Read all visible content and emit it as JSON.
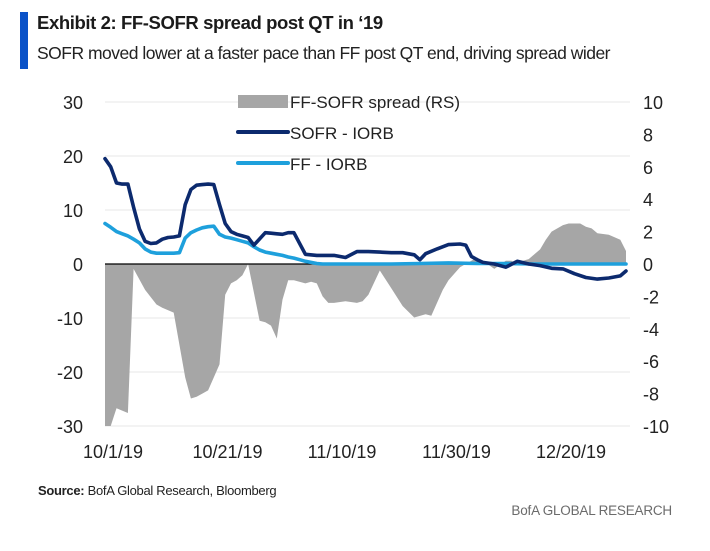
{
  "header": {
    "title": "Exhibit 2: FF-SOFR spread post QT in ‘19",
    "subtitle": "SOFR moved lower at a faster pace than FF post QT end, driving spread wider"
  },
  "footer": {
    "source_label": "Source:",
    "source_text": " BofA Global Research, Bloomberg",
    "brand": "BofA GLOBAL RESEARCH"
  },
  "colors": {
    "accent": "#0a52c8",
    "spread_area": "#a6a6a6",
    "sofr_line": "#0c2a6e",
    "ff_line": "#1ea0dc",
    "zero_line": "#000000",
    "grid": "#ececec"
  },
  "chart_data": {
    "type": "line",
    "title": "Exhibit 2: FF-SOFR spread post QT in ‘19",
    "subtitle": "SOFR moved lower at a faster pace than FF post QT end, driving spread wider",
    "xlabel": "",
    "ylabel": "",
    "x_ticks": [
      "10/1/19",
      "10/21/19",
      "11/10/19",
      "11/30/19",
      "12/20/19"
    ],
    "x_tick_days": [
      0,
      20,
      40,
      60,
      80
    ],
    "x_range_days": [
      0,
      91
    ],
    "x_start_date": "10/1/19",
    "ylim_left": [
      -30,
      30
    ],
    "y_ticks_left": [
      "30",
      "20",
      "10",
      "0",
      "-10",
      "-20",
      "-30"
    ],
    "y_tick_values_left": [
      30,
      20,
      10,
      0,
      -10,
      -20,
      -30
    ],
    "ylim_right": [
      -10,
      10
    ],
    "y_ticks_right": [
      "10",
      "8",
      "6",
      "4",
      "2",
      "0",
      "-2",
      "-4",
      "-6",
      "-8",
      "-10"
    ],
    "y_tick_values_right": [
      10,
      8,
      6,
      4,
      2,
      0,
      -2,
      -4,
      -6,
      -8,
      -10
    ],
    "grid": true,
    "legend_position": "top-center",
    "legend": [
      {
        "name": "FF-SOFR spread (RS)",
        "kind": "area"
      },
      {
        "name": "SOFR - IORB",
        "kind": "line"
      },
      {
        "name": "FF - IORB",
        "kind": "line"
      }
    ],
    "series": [
      {
        "name": "FF-SOFR spread (RS)",
        "axis": "right",
        "type": "area",
        "x": [
          0,
          1,
          2,
          4,
          5,
          7,
          9,
          10,
          12,
          14,
          15,
          16,
          17,
          18,
          20,
          21,
          22,
          23,
          24,
          25,
          27,
          28,
          29,
          30,
          31,
          32,
          33,
          35,
          36,
          37,
          38,
          39,
          40,
          42,
          44,
          45,
          46,
          48,
          50,
          52,
          54,
          56,
          57,
          59,
          60,
          62,
          64,
          65,
          66,
          68,
          70,
          71,
          72,
          73,
          74,
          76,
          77,
          78,
          79,
          80,
          81,
          83,
          84,
          85,
          86,
          88,
          90,
          91
        ],
        "values": [
          -10.0,
          -10.0,
          -8.9,
          -9.2,
          -0.3,
          -1.6,
          -2.5,
          -2.7,
          -3.0,
          -7.0,
          -8.3,
          -8.2,
          -8.0,
          -7.8,
          -6.2,
          -1.9,
          -1.2,
          -1.0,
          -0.7,
          0.0,
          -3.5,
          -3.6,
          -3.8,
          -4.6,
          -2.2,
          -1.0,
          -1.0,
          -1.2,
          -1.1,
          -1.2,
          -2.0,
          -2.4,
          -2.4,
          -2.3,
          -2.4,
          -2.3,
          -1.9,
          -0.4,
          -1.5,
          -2.6,
          -3.3,
          -3.1,
          -3.2,
          -1.6,
          -1.0,
          -0.2,
          0.2,
          0.4,
          0.2,
          -0.3,
          0.2,
          0.2,
          0.0,
          0.2,
          0.3,
          0.9,
          1.5,
          2.0,
          2.2,
          2.4,
          2.5,
          2.5,
          2.3,
          2.2,
          1.9,
          1.8,
          1.5,
          0.8
        ]
      },
      {
        "name": "SOFR - IORB",
        "axis": "left",
        "type": "line",
        "x": [
          0,
          1,
          2,
          3,
          4,
          5,
          6,
          7,
          8,
          9,
          10,
          11,
          12,
          13,
          14,
          15,
          16,
          17,
          18,
          19,
          20,
          21,
          22,
          23,
          24,
          25,
          26,
          28,
          29,
          30,
          31,
          32,
          33,
          35,
          37,
          39,
          40,
          42,
          44,
          45,
          46,
          48,
          50,
          52,
          54,
          55,
          56,
          58,
          60,
          62,
          63,
          64,
          65,
          66,
          68,
          70,
          72,
          74,
          76,
          78,
          80,
          82,
          84,
          86,
          88,
          90,
          91
        ],
        "values": [
          19.5,
          18.0,
          15.0,
          14.8,
          14.8,
          10.5,
          6.5,
          4.2,
          3.8,
          3.9,
          4.6,
          4.9,
          5.0,
          5.2,
          11.0,
          13.8,
          14.6,
          14.7,
          14.8,
          14.7,
          11.0,
          7.5,
          6.0,
          5.5,
          5.2,
          4.9,
          3.5,
          5.8,
          5.7,
          5.6,
          5.5,
          5.8,
          5.8,
          1.8,
          1.6,
          1.6,
          1.6,
          1.2,
          2.3,
          2.3,
          2.3,
          2.2,
          2.1,
          2.1,
          1.7,
          0.8,
          1.9,
          2.8,
          3.6,
          3.7,
          3.5,
          1.4,
          0.8,
          0.3,
          0.0,
          -0.6,
          0.5,
          0.0,
          -0.3,
          -0.8,
          -0.9,
          -1.8,
          -2.5,
          -2.8,
          -2.6,
          -2.2,
          -1.3
        ]
      },
      {
        "name": "FF - IORB",
        "axis": "left",
        "type": "line",
        "x": [
          0,
          1,
          2,
          3,
          4,
          5,
          6,
          7,
          8,
          9,
          10,
          11,
          12,
          13,
          14,
          15,
          16,
          17,
          18,
          19,
          20,
          21,
          22,
          23,
          24,
          25,
          26,
          27,
          28,
          29,
          30,
          31,
          32,
          33,
          34,
          35,
          36,
          37,
          38,
          40,
          45,
          50,
          55,
          60,
          65,
          70,
          75,
          80,
          85,
          91
        ],
        "values": [
          7.5,
          6.8,
          6.0,
          5.6,
          5.2,
          4.6,
          3.9,
          2.8,
          2.2,
          2.0,
          2.0,
          2.0,
          2.0,
          2.1,
          4.8,
          5.8,
          6.3,
          6.7,
          6.9,
          7.0,
          5.5,
          5.0,
          4.8,
          4.5,
          4.2,
          3.9,
          3.2,
          2.6,
          2.2,
          2.0,
          1.8,
          1.6,
          1.3,
          1.1,
          0.8,
          0.5,
          0.3,
          0.1,
          0.0,
          0.0,
          0.0,
          0.0,
          0.1,
          0.2,
          0.1,
          0.1,
          0.0,
          0.0,
          0.0,
          0.0
        ]
      }
    ]
  }
}
